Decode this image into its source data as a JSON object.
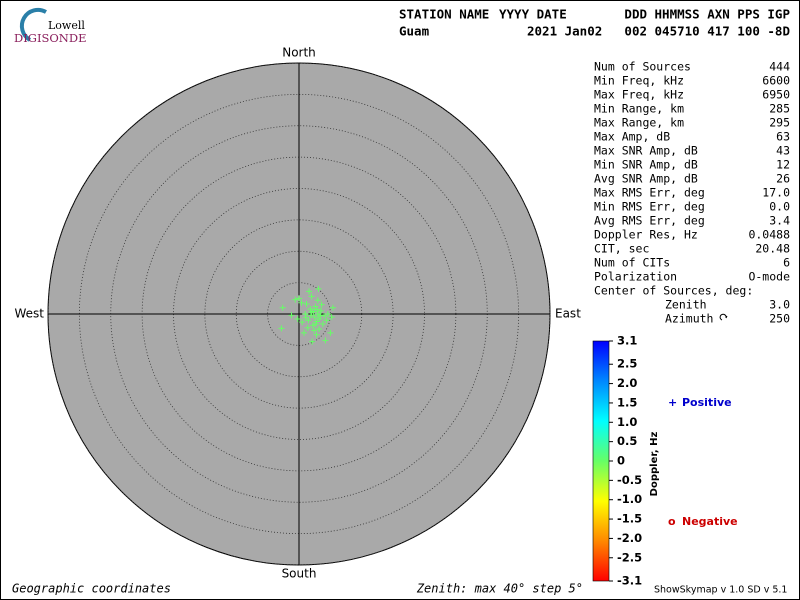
{
  "logo": {
    "line1": "Lowell",
    "line2": "DIGISONDE"
  },
  "header": {
    "labels": [
      "STATION NAME",
      "YYYY DATE",
      "DDD HHMMSS AXN PPS IGP"
    ],
    "values": [
      "Guam",
      "2021 Jan02",
      "002 045710 417 100 -8D"
    ]
  },
  "stats": [
    [
      "Num of Sources",
      "444"
    ],
    [
      "Min Freq, kHz",
      "6600"
    ],
    [
      "Max Freq, kHz",
      "6950"
    ],
    [
      "Min Range, km",
      "285"
    ],
    [
      "Max Range, km",
      "295"
    ],
    [
      "Max Amp, dB",
      "63"
    ],
    [
      "Max SNR Amp, dB",
      "43"
    ],
    [
      "Min SNR Amp, dB",
      "12"
    ],
    [
      "Avg SNR Amp, dB",
      "26"
    ],
    [
      "Max RMS Err, deg",
      "17.0"
    ],
    [
      "Min RMS Err, deg",
      "0.0"
    ],
    [
      "Avg RMS Err, deg",
      "3.4"
    ],
    [
      "Doppler Res, Hz",
      "0.0488"
    ],
    [
      "CIT, sec",
      "20.48"
    ],
    [
      "Num of CITs",
      "6"
    ],
    [
      "Polarization",
      "O-mode"
    ]
  ],
  "center": {
    "title": "Center of Sources, deg:",
    "rows": [
      [
        "Zenith",
        "3.0"
      ],
      [
        "Azimuth",
        "250"
      ]
    ]
  },
  "version": "ShowSkymap v 1.0   SD v 5.1",
  "chart_data": {
    "type": "skymap",
    "directions": {
      "north": "North",
      "south": "South",
      "east": "East",
      "west": "West"
    },
    "footer_left": "Geographic coordinates",
    "footer_right": "Zenith: max 40°  step 5°",
    "xlim": [
      -40,
      40
    ],
    "ylim": [
      -40,
      40
    ],
    "rings": [
      5,
      10,
      15,
      20,
      25,
      30,
      35,
      40
    ],
    "grid": true,
    "series": [
      {
        "name": "Positive",
        "color": "#0000cc",
        "marker": "+",
        "point_color": "#66ff66",
        "x": [
          2.5,
          2.0,
          3.0,
          1.5,
          2.8,
          3.5,
          1.8,
          2.2,
          3.2,
          1.0,
          4.0,
          2.6,
          1.4,
          3.8,
          0.5,
          2.4,
          4.6,
          5.2,
          3.0,
          2.0,
          0.0,
          -0.2,
          -2.6,
          -2.8,
          -0.6,
          5.0,
          4.2,
          2.1,
          2.8,
          1.2,
          3.6,
          0.8,
          5.4,
          -1.2,
          1.6,
          3.2,
          2.9,
          1.9,
          2.3,
          3.4,
          2.7,
          1.1,
          4.4,
          0.4,
          3.1
        ],
        "values": [
          -0.5,
          0.3,
          0.0,
          -1.0,
          -1.2,
          0.5,
          0.8,
          -1.8,
          -0.8,
          0.0,
          -0.3,
          1.2,
          -2.2,
          -1.6,
          -1.3,
          -2.6,
          0.0,
          -0.5,
          2.2,
          2.8,
          2.5,
          -0.8,
          1.0,
          -2.3,
          2.3,
          -3.0,
          -4.2,
          -4.4,
          -3.3,
          1.6,
          1.5,
          -3.0,
          1.0,
          -0.2,
          3.6,
          -2.4,
          0.7,
          -0.2,
          0.4,
          -0.2,
          -1.6,
          -0.6,
          -1.0,
          1.8,
          4.0
        ]
      },
      {
        "name": "Negative",
        "color": "#cc0000",
        "marker": "o",
        "x": [],
        "values": []
      }
    ],
    "colorbar": {
      "label": "Doppler, Hz",
      "lim": [
        -3.1,
        3.1
      ],
      "colors": [
        "#ff0000",
        "#ff8800",
        "#ffff00",
        "#66ff66",
        "#00ffff",
        "#0088ff",
        "#0000ff"
      ],
      "ticks": [
        3.1,
        2.5,
        {
          "value": 2,
          "label": "2.0"
        },
        1.5,
        {
          "value": 1,
          "label": "1.0"
        },
        0.5,
        0,
        -0.5,
        {
          "value": -1,
          "label": "-1.0"
        },
        -1.5,
        {
          "value": -2,
          "label": "-2.0"
        },
        -2.5,
        -3.1
      ]
    }
  }
}
